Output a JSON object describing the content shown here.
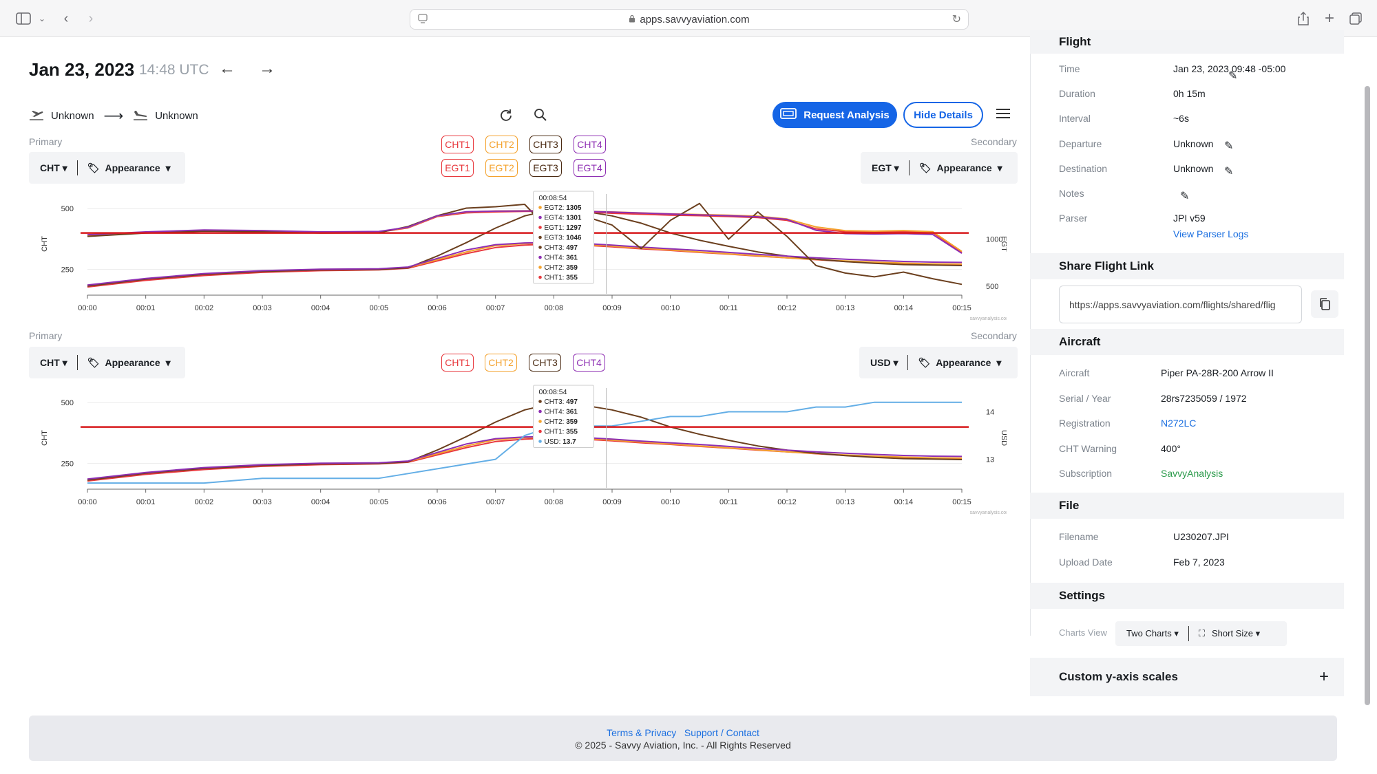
{
  "browser": {
    "url": "apps.savvyaviation.com"
  },
  "header": {
    "date": "Jan 23, 2023",
    "time": "14:48 UTC",
    "departure": "Unknown",
    "destination": "Unknown",
    "request_analysis": "Request Analysis",
    "hide_details": "Hide Details"
  },
  "colors": {
    "cht1": "#e8383d",
    "cht2": "#f4a22d",
    "cht3": "#6b3f1e",
    "cht4": "#8e2fb3",
    "usd": "#63aee6",
    "warning": "#d7191c",
    "accent": "#1565e6"
  },
  "chart1": {
    "primary_label": "Primary",
    "secondary_label": "Secondary",
    "primary_select": "CHT",
    "secondary_select": "EGT",
    "appearance": "Appearance",
    "cht_tags": [
      "CHT1",
      "CHT2",
      "CHT3",
      "CHT4"
    ],
    "egt_tags": [
      "EGT1",
      "EGT2",
      "EGT3",
      "EGT4"
    ],
    "tooltip": {
      "time": "00:08:54",
      "rows": [
        {
          "label": "EGT2:",
          "value": "1305",
          "color": "#f4a22d"
        },
        {
          "label": "EGT4:",
          "value": "1301",
          "color": "#8e2fb3"
        },
        {
          "label": "EGT1:",
          "value": "1297",
          "color": "#e8383d"
        },
        {
          "label": "EGT3:",
          "value": "1046",
          "color": "#6b3f1e"
        },
        {
          "label": "CHT3:",
          "value": "497",
          "color": "#6b3f1e"
        },
        {
          "label": "CHT4:",
          "value": "361",
          "color": "#8e2fb3"
        },
        {
          "label": "CHT2:",
          "value": "359",
          "color": "#f4a22d"
        },
        {
          "label": "CHT1:",
          "value": "355",
          "color": "#e8383d"
        }
      ]
    },
    "watermark": "savvyanalysis.com"
  },
  "chart2": {
    "primary_label": "Primary",
    "secondary_label": "Secondary",
    "primary_select": "CHT",
    "secondary_select": "USD",
    "appearance": "Appearance",
    "cht_tags": [
      "CHT1",
      "CHT2",
      "CHT3",
      "CHT4"
    ],
    "tooltip": {
      "time": "00:08:54",
      "rows": [
        {
          "label": "CHT3:",
          "value": "497",
          "color": "#6b3f1e"
        },
        {
          "label": "CHT4:",
          "value": "361",
          "color": "#8e2fb3"
        },
        {
          "label": "CHT2:",
          "value": "359",
          "color": "#f4a22d"
        },
        {
          "label": "CHT1:",
          "value": "355",
          "color": "#e8383d"
        },
        {
          "label": "USD:",
          "value": "13.7",
          "color": "#63aee6"
        }
      ]
    },
    "watermark": "savvyanalysis.com"
  },
  "chart_data": [
    {
      "type": "line",
      "xlabel": "",
      "ylabel": "CHT",
      "y2label": "EGT",
      "x_ticks": [
        "00:00",
        "00:01",
        "00:02",
        "00:03",
        "00:04",
        "00:05",
        "00:06",
        "00:07",
        "00:08",
        "00:09",
        "00:10",
        "00:11",
        "00:12",
        "00:13",
        "00:14",
        "00:15"
      ],
      "y_ticks": [
        250,
        500
      ],
      "y2_ticks": [
        500,
        1000
      ],
      "ylim": [
        150,
        560
      ],
      "y2lim": [
        420,
        1480
      ],
      "warning_line": 400,
      "x": [
        0,
        1,
        2,
        3,
        4,
        5,
        5.5,
        6,
        6.5,
        7,
        7.5,
        8,
        8.5,
        9,
        9.5,
        10,
        10.5,
        11,
        11.5,
        12,
        12.5,
        13,
        13.5,
        14,
        14.5,
        15
      ],
      "series": [
        {
          "name": "CHT1",
          "axis": "primary",
          "color": "#e8383d",
          "values": [
            178,
            205,
            225,
            238,
            245,
            248,
            255,
            285,
            315,
            340,
            350,
            355,
            350,
            343,
            335,
            328,
            320,
            313,
            305,
            298,
            290,
            283,
            278,
            273,
            270,
            270
          ]
        },
        {
          "name": "CHT2",
          "axis": "primary",
          "color": "#f4a22d",
          "values": [
            185,
            212,
            232,
            244,
            250,
            252,
            258,
            290,
            322,
            348,
            356,
            359,
            354,
            346,
            338,
            330,
            322,
            314,
            306,
            298,
            291,
            285,
            280,
            276,
            273,
            272
          ]
        },
        {
          "name": "CHT3",
          "axis": "primary",
          "color": "#6b3f1e",
          "values": [
            182,
            210,
            230,
            242,
            248,
            250,
            257,
            305,
            360,
            420,
            470,
            497,
            490,
            470,
            440,
            400,
            370,
            345,
            322,
            305,
            292,
            282,
            275,
            270,
            268,
            266
          ]
        },
        {
          "name": "CHT4",
          "axis": "primary",
          "color": "#8e2fb3",
          "values": [
            186,
            213,
            233,
            245,
            251,
            253,
            260,
            295,
            330,
            352,
            359,
            361,
            357,
            350,
            342,
            335,
            328,
            320,
            312,
            305,
            298,
            292,
            287,
            283,
            280,
            279
          ]
        },
        {
          "name": "EGT1",
          "axis": "secondary",
          "color": "#e8383d",
          "values": [
            1040,
            1070,
            1090,
            1085,
            1070,
            1075,
            1120,
            1240,
            1280,
            1290,
            1295,
            1297,
            1290,
            1275,
            1265,
            1255,
            1250,
            1240,
            1230,
            1200,
            1110,
            1080,
            1075,
            1080,
            1070,
            860
          ]
        },
        {
          "name": "EGT2",
          "axis": "secondary",
          "color": "#f4a22d",
          "values": [
            1045,
            1075,
            1095,
            1090,
            1075,
            1080,
            1125,
            1245,
            1290,
            1300,
            1303,
            1305,
            1298,
            1290,
            1280,
            1270,
            1262,
            1255,
            1245,
            1215,
            1130,
            1090,
            1085,
            1092,
            1080,
            870
          ]
        },
        {
          "name": "EGT3",
          "axis": "secondary",
          "color": "#6b3f1e",
          "values": [
            1030,
            1065,
            1085,
            1080,
            1065,
            1070,
            1135,
            1250,
            1330,
            1345,
            1370,
            1046,
            1250,
            1150,
            900,
            1200,
            1380,
            1000,
            1290,
            1030,
            720,
            640,
            600,
            650,
            580,
            520
          ]
        },
        {
          "name": "EGT4",
          "axis": "secondary",
          "color": "#8e2fb3",
          "values": [
            1048,
            1078,
            1098,
            1092,
            1078,
            1082,
            1128,
            1248,
            1292,
            1298,
            1300,
            1301,
            1296,
            1288,
            1278,
            1268,
            1258,
            1250,
            1238,
            1210,
            1095,
            1060,
            1055,
            1060,
            1050,
            850
          ]
        }
      ]
    },
    {
      "type": "line",
      "xlabel": "",
      "ylabel": "CHT",
      "y2label": "USD",
      "x_ticks": [
        "00:00",
        "00:01",
        "00:02",
        "00:03",
        "00:04",
        "00:05",
        "00:06",
        "00:07",
        "00:08",
        "00:09",
        "00:10",
        "00:11",
        "00:12",
        "00:13",
        "00:14",
        "00:15"
      ],
      "y_ticks": [
        250,
        500
      ],
      "y2_ticks": [
        13,
        14
      ],
      "ylim": [
        150,
        560
      ],
      "y2lim": [
        12.4,
        14.5
      ],
      "warning_line": 400,
      "x": [
        0,
        1,
        2,
        3,
        4,
        5,
        5.5,
        6,
        6.5,
        7,
        7.5,
        8,
        8.5,
        9,
        9.5,
        10,
        10.5,
        11,
        11.5,
        12,
        12.5,
        13,
        13.5,
        14,
        14.5,
        15
      ],
      "series": [
        {
          "name": "CHT1",
          "axis": "primary",
          "color": "#e8383d",
          "values": [
            178,
            205,
            225,
            238,
            245,
            248,
            255,
            285,
            315,
            340,
            350,
            355,
            350,
            343,
            335,
            328,
            320,
            313,
            305,
            298,
            290,
            283,
            278,
            273,
            270,
            270
          ]
        },
        {
          "name": "CHT2",
          "axis": "primary",
          "color": "#f4a22d",
          "values": [
            185,
            212,
            232,
            244,
            250,
            252,
            258,
            290,
            322,
            348,
            356,
            359,
            354,
            346,
            338,
            330,
            322,
            314,
            306,
            298,
            291,
            285,
            280,
            276,
            273,
            272
          ]
        },
        {
          "name": "CHT3",
          "axis": "primary",
          "color": "#6b3f1e",
          "values": [
            182,
            210,
            230,
            242,
            248,
            250,
            257,
            305,
            360,
            420,
            470,
            497,
            490,
            470,
            440,
            400,
            370,
            345,
            322,
            305,
            292,
            282,
            275,
            270,
            268,
            266
          ]
        },
        {
          "name": "CHT4",
          "axis": "primary",
          "color": "#8e2fb3",
          "values": [
            186,
            213,
            233,
            245,
            251,
            253,
            260,
            295,
            330,
            352,
            359,
            361,
            357,
            350,
            342,
            335,
            328,
            320,
            312,
            305,
            298,
            292,
            287,
            283,
            280,
            279
          ]
        },
        {
          "name": "USD",
          "axis": "secondary",
          "color": "#63aee6",
          "values": [
            12.5,
            12.5,
            12.5,
            12.6,
            12.6,
            12.6,
            12.7,
            12.8,
            12.9,
            13.0,
            13.5,
            13.7,
            13.7,
            13.7,
            13.8,
            13.9,
            13.9,
            14.0,
            14.0,
            14.0,
            14.1,
            14.1,
            14.2,
            14.2,
            14.2,
            14.2
          ]
        }
      ]
    }
  ],
  "panel": {
    "flight_head": "Flight",
    "flight": [
      {
        "k": "Time",
        "v": "Jan 23, 2023 09:48 -05:00"
      },
      {
        "k": "Duration",
        "v": "0h 15m"
      },
      {
        "k": "Interval",
        "v": "~6s"
      },
      {
        "k": "Departure",
        "v": "Unknown"
      },
      {
        "k": "Destination",
        "v": "Unknown"
      },
      {
        "k": "Notes",
        "v": ""
      },
      {
        "k": "Parser",
        "v": "JPI v59"
      }
    ],
    "view_parser_logs": "View Parser Logs",
    "share_head": "Share Flight Link",
    "share_url": "https://apps.savvyaviation.com/flights/shared/flig",
    "aircraft_head": "Aircraft",
    "aircraft": [
      {
        "k": "Aircraft",
        "v": "Piper PA-28R-200 Arrow II"
      },
      {
        "k": "Serial / Year",
        "v": "28rs7235059 / 1972"
      },
      {
        "k": "Registration",
        "v": "N272LC"
      },
      {
        "k": "CHT Warning",
        "v": "400°"
      },
      {
        "k": "Subscription",
        "v": "SavvyAnalysis"
      }
    ],
    "file_head": "File",
    "file": [
      {
        "k": "Filename",
        "v": "U230207.JPI"
      },
      {
        "k": "Upload Date",
        "v": "Feb 7, 2023"
      }
    ],
    "settings_head": "Settings",
    "charts_view_label": "Charts View",
    "charts_view_value": "Two Charts",
    "size_value": "Short Size",
    "custom_head": "Custom y-axis scales"
  },
  "footer": {
    "terms": "Terms & Privacy",
    "support": "Support / Contact",
    "copyright": "© 2025 - Savvy Aviation, Inc. - All Rights Reserved"
  }
}
